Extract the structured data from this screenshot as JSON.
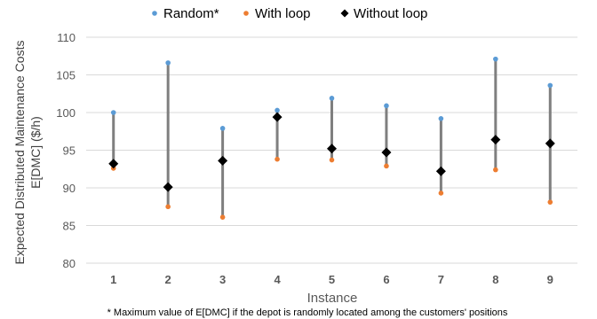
{
  "chart_data": {
    "type": "scatter",
    "title": "",
    "xlabel": "Instance",
    "ylabel_line1": "Expected Distributed Maintenance Costs",
    "ylabel_line2": "E[DMC] ($/h)",
    "categories": [
      "1",
      "2",
      "3",
      "4",
      "5",
      "6",
      "7",
      "8",
      "9"
    ],
    "ylim": [
      80,
      110
    ],
    "yticks": [
      "80",
      "85",
      "90",
      "95",
      "100",
      "105",
      "110"
    ],
    "grid": true,
    "legend_position": "top-center",
    "series": [
      {
        "name": "Random*",
        "marker": "circle",
        "color": "#5B9BD5",
        "values": [
          100.0,
          106.6,
          97.9,
          100.3,
          101.9,
          100.9,
          99.2,
          107.1,
          103.6
        ]
      },
      {
        "name": "With loop",
        "marker": "circle",
        "color": "#ED7D31",
        "values": [
          92.6,
          87.5,
          86.1,
          93.8,
          93.7,
          92.9,
          89.3,
          92.4,
          88.1
        ]
      },
      {
        "name": "Without loop",
        "marker": "diamond",
        "color": "#000000",
        "values": [
          93.2,
          90.1,
          93.6,
          99.4,
          95.2,
          94.7,
          92.2,
          96.4,
          95.9
        ]
      }
    ],
    "range_line_color": "#7F7F7F",
    "footnote": "* Maximum value of E[DMC] if the depot is randomly located among the customers' positions"
  }
}
